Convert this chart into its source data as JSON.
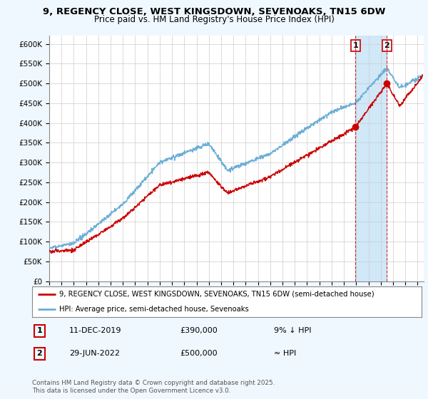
{
  "title_line1": "9, REGENCY CLOSE, WEST KINGSDOWN, SEVENOAKS, TN15 6DW",
  "title_line2": "Price paid vs. HM Land Registry's House Price Index (HPI)",
  "xlim_start": 1995.0,
  "xlim_end": 2025.5,
  "ylim_min": 0,
  "ylim_max": 620000,
  "yticks": [
    0,
    50000,
    100000,
    150000,
    200000,
    250000,
    300000,
    350000,
    400000,
    450000,
    500000,
    550000,
    600000
  ],
  "ytick_labels": [
    "£0",
    "£50K",
    "£100K",
    "£150K",
    "£200K",
    "£250K",
    "£300K",
    "£350K",
    "£400K",
    "£450K",
    "£500K",
    "£550K",
    "£600K"
  ],
  "hpi_color": "#6baed6",
  "price_color": "#cc0000",
  "shade_color": "#d0e8f8",
  "sale1_date": 2019.94,
  "sale1_price": 390000,
  "sale2_date": 2022.49,
  "sale2_price": 500000,
  "legend_label_red": "9, REGENCY CLOSE, WEST KINGSDOWN, SEVENOAKS, TN15 6DW (semi-detached house)",
  "legend_label_blue": "HPI: Average price, semi-detached house, Sevenoaks",
  "annotation1_date": "11-DEC-2019",
  "annotation1_price": "£390,000",
  "annotation1_hpi": "9% ↓ HPI",
  "annotation2_date": "29-JUN-2022",
  "annotation2_price": "£500,000",
  "annotation2_hpi": "≈ HPI",
  "footer": "Contains HM Land Registry data © Crown copyright and database right 2025.\nThis data is licensed under the Open Government Licence v3.0.",
  "background_color": "#f0f8ff",
  "plot_bg_color": "#ffffff"
}
